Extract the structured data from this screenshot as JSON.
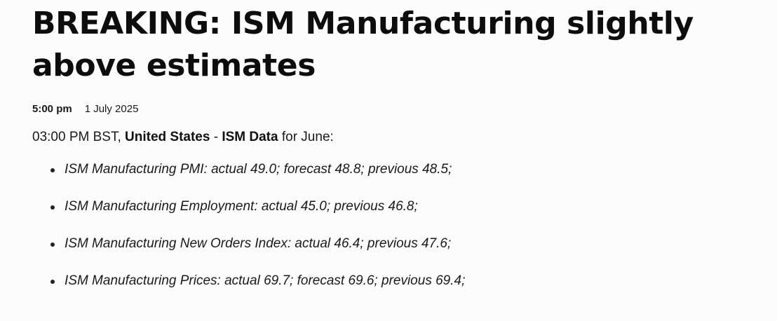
{
  "article": {
    "headline": "BREAKING: ISM Manufacturing slightly above estimates",
    "time": "5:00 pm",
    "date": "1 July 2025",
    "intro": {
      "time_prefix": "03:00 PM BST, ",
      "country": "United States",
      "separator": " - ",
      "dataset": "ISM Data",
      "suffix": " for June:"
    },
    "bullets": [
      "ISM Manufacturing PMI: actual 49.0; forecast 48.8; previous 48.5;",
      "ISM Manufacturing Employment: actual 45.0; previous 46.8;",
      "ISM Manufacturing New Orders Index: actual 46.4; previous 47.6;",
      "ISM Manufacturing Prices: actual 69.7; forecast 69.6; previous 69.4;"
    ]
  }
}
